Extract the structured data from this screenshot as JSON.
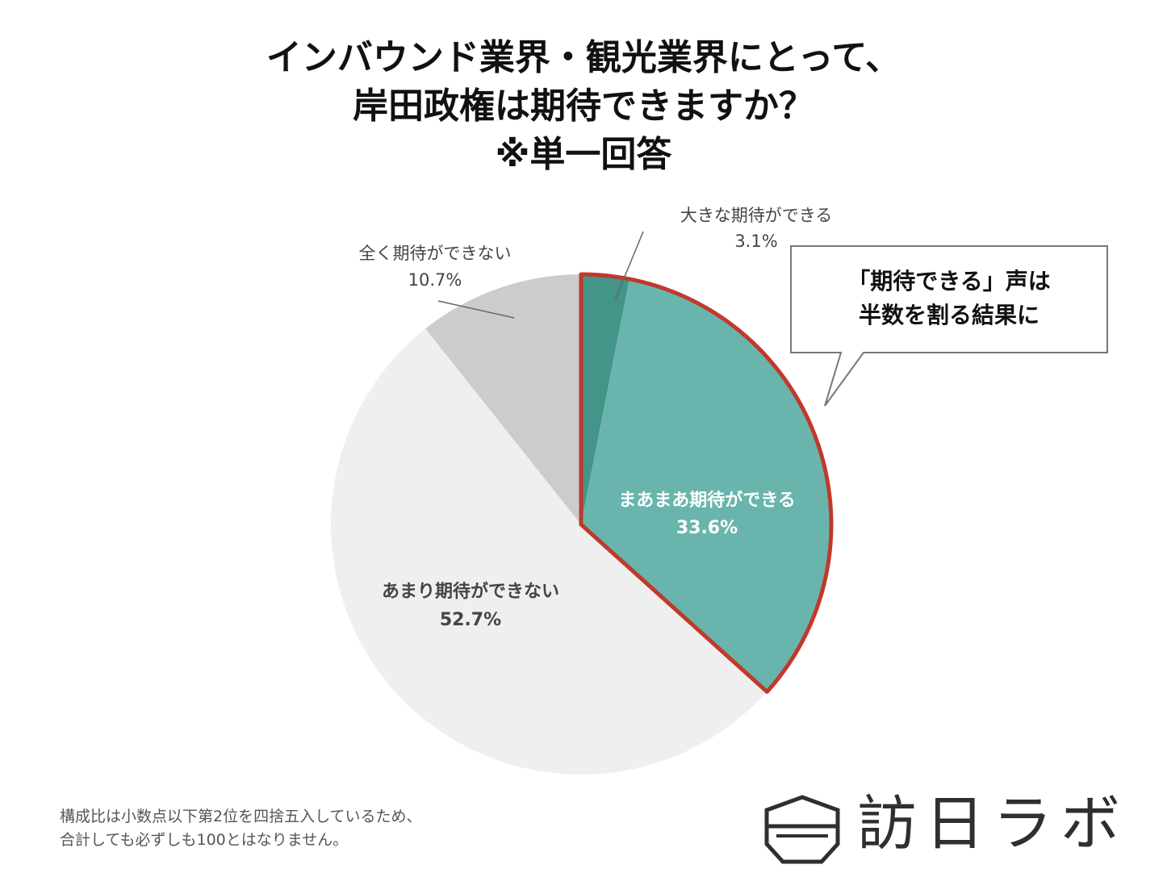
{
  "title": {
    "line1": "インバウンド業界・観光業界にとって、",
    "line2": "岸田政権は期待できますか？",
    "line3": "※単一回答"
  },
  "chart_data": {
    "type": "pie",
    "title": "インバウンド業界・観光業界にとって、岸田政権は期待できますか？ ※単一回答",
    "unit": "%",
    "start": "12 o'clock, clockwise",
    "slices": [
      {
        "label": "大きな期待ができる",
        "value": 3.1,
        "value_label": "3.1%",
        "color": "#43958a",
        "highlighted": false
      },
      {
        "label": "まあまあ期待ができる",
        "value": 33.6,
        "value_label": "33.6%",
        "color": "#69b5ad",
        "highlighted": true
      },
      {
        "label": "あまり期待ができない",
        "value": 52.7,
        "value_label": "52.7%",
        "color": "#efefef",
        "highlighted": false
      },
      {
        "label": "全く期待ができない",
        "value": 10.7,
        "value_label": "10.7%",
        "color": "#cccccc",
        "highlighted": false
      }
    ],
    "highlight_color": "#c0392b",
    "callout": {
      "line1": "「期待できる」声は",
      "line2": "半数を割る結果に"
    }
  },
  "footnote": {
    "line1": "構成比は小数点以下第2位を四捨五入しているため、",
    "line2": "合計しても必ずしも100とはなりません。"
  },
  "logo": {
    "text": "訪日ラボ",
    "icon": "shield-hexagon-icon"
  }
}
